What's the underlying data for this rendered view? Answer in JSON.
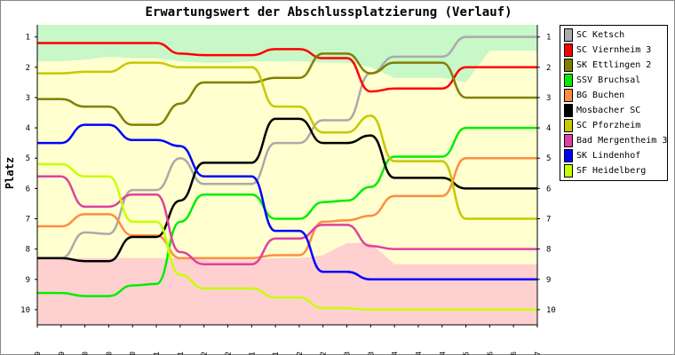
{
  "chart_data": {
    "type": "line",
    "title": "Erwartungswert der Abschlussplatzierung (Verlauf)",
    "ylabel": "Platz",
    "xlabel": "",
    "y_ticks": [
      "1",
      "2",
      "3",
      "4",
      "5",
      "6",
      "7",
      "8",
      "9",
      "10"
    ],
    "ylim": [
      0.6,
      10.5
    ],
    "y_inverted": true,
    "grid": false,
    "legend_position": "right",
    "categories": [
      "04.09",
      "18.09",
      "02.10",
      "16.10",
      "30.10",
      "13.11",
      "27.11",
      "11.12",
      "25.12",
      "08.01",
      "22.01",
      "05.02",
      "19.02",
      "05.03",
      "19.03",
      "02.04",
      "16.04",
      "30.04",
      "28.05",
      "11.06",
      "25.06",
      "09.07"
    ],
    "zones": {
      "promotion": {
        "color": "#c8f7c8"
      },
      "middle": {
        "color": "#ffffd0"
      },
      "relegation": {
        "color": "#ffd0d0"
      },
      "promotion_bottom": [
        1.8,
        1.8,
        1.75,
        1.65,
        1.7,
        1.7,
        1.8,
        1.85,
        1.85,
        1.8,
        1.8,
        1.8,
        1.85,
        1.85,
        2.0,
        2.35,
        2.35,
        2.35,
        2.5,
        1.45,
        1.45,
        1.45
      ],
      "relegation_top": [
        8.3,
        8.3,
        8.3,
        8.3,
        8.3,
        8.3,
        8.3,
        8.35,
        8.35,
        8.35,
        8.3,
        8.3,
        8.2,
        7.8,
        7.8,
        8.5,
        8.5,
        8.5,
        8.5,
        8.5,
        8.5,
        8.5
      ]
    },
    "series": [
      {
        "name": "SC Ketsch",
        "color": "#aaaaaa",
        "values": [
          8.3,
          8.3,
          7.45,
          7.5,
          6.05,
          6.05,
          5.0,
          5.85,
          5.85,
          5.85,
          4.5,
          4.5,
          3.75,
          3.75,
          2.2,
          1.65,
          1.65,
          1.65,
          1.0,
          1.0,
          1.0,
          1.0
        ]
      },
      {
        "name": "SC Viernheim 3",
        "color": "#ff0000",
        "values": [
          1.2,
          1.2,
          1.2,
          1.2,
          1.2,
          1.2,
          1.55,
          1.6,
          1.6,
          1.6,
          1.4,
          1.4,
          1.7,
          1.7,
          2.8,
          2.7,
          2.7,
          2.7,
          2.0,
          2.0,
          2.0,
          2.0
        ]
      },
      {
        "name": "SK Ettlingen 2",
        "color": "#808000",
        "values": [
          3.05,
          3.05,
          3.3,
          3.3,
          3.9,
          3.9,
          3.2,
          2.5,
          2.5,
          2.5,
          2.35,
          2.35,
          1.55,
          1.55,
          2.2,
          1.85,
          1.85,
          1.85,
          3.0,
          3.0,
          3.0,
          3.0
        ]
      },
      {
        "name": "SSV Bruchsal",
        "color": "#00ee00",
        "values": [
          9.45,
          9.45,
          9.55,
          9.55,
          9.2,
          9.15,
          7.1,
          6.2,
          6.2,
          6.2,
          7.0,
          7.0,
          6.45,
          6.4,
          5.95,
          4.95,
          4.95,
          4.95,
          4.0,
          4.0,
          4.0,
          4.0
        ]
      },
      {
        "name": "BG Buchen",
        "color": "#ff8c40",
        "values": [
          7.25,
          7.25,
          6.85,
          6.85,
          7.55,
          7.55,
          8.3,
          8.3,
          8.3,
          8.3,
          8.2,
          8.2,
          7.1,
          7.05,
          6.9,
          6.25,
          6.25,
          6.25,
          5.0,
          5.0,
          5.0,
          5.0
        ]
      },
      {
        "name": "Mosbacher SC",
        "color": "#000000",
        "values": [
          8.3,
          8.3,
          8.4,
          8.4,
          7.6,
          7.6,
          6.4,
          5.15,
          5.15,
          5.15,
          3.7,
          3.7,
          4.5,
          4.5,
          4.25,
          5.65,
          5.65,
          5.65,
          6.0,
          6.0,
          6.0,
          6.0
        ]
      },
      {
        "name": "SC Pforzheim",
        "color": "#c8c800",
        "values": [
          2.2,
          2.2,
          2.15,
          2.15,
          1.85,
          1.85,
          2.0,
          2.0,
          2.0,
          2.0,
          3.3,
          3.3,
          4.15,
          4.15,
          3.6,
          5.1,
          5.1,
          5.1,
          7.0,
          7.0,
          7.0,
          7.0
        ]
      },
      {
        "name": "Bad Mergentheim 3",
        "color": "#e040a0",
        "values": [
          5.6,
          5.6,
          6.6,
          6.6,
          6.2,
          6.2,
          8.1,
          8.5,
          8.5,
          8.5,
          7.65,
          7.65,
          7.2,
          7.2,
          7.9,
          8.0,
          8.0,
          8.0,
          8.0,
          8.0,
          8.0,
          8.0
        ]
      },
      {
        "name": "SK Lindenhof",
        "color": "#0000ff",
        "values": [
          4.5,
          4.5,
          3.9,
          3.9,
          4.4,
          4.4,
          4.6,
          5.6,
          5.6,
          5.6,
          7.4,
          7.4,
          8.75,
          8.75,
          9.0,
          9.0,
          9.0,
          9.0,
          9.0,
          9.0,
          9.0,
          9.0
        ]
      },
      {
        "name": "SF Heidelberg",
        "color": "#c8ff00",
        "values": [
          5.2,
          5.2,
          5.6,
          5.6,
          7.1,
          7.1,
          8.85,
          9.3,
          9.3,
          9.3,
          9.6,
          9.6,
          9.95,
          9.95,
          10.0,
          10.0,
          10.0,
          10.0,
          10.0,
          10.0,
          10.0,
          10.0
        ]
      }
    ]
  }
}
